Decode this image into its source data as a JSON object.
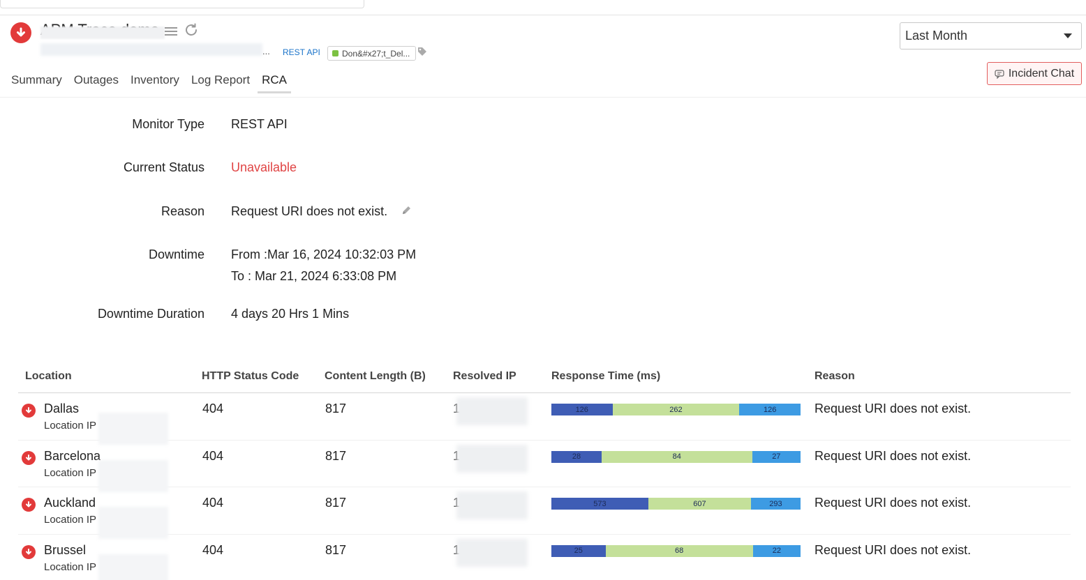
{
  "header": {
    "title": "APM Trace demo",
    "ellipsis": "...",
    "monitor_type_link": "REST API",
    "group_chip": "Don&#x27;t_Del...",
    "period": "Last Month",
    "incident_chat": "Incident Chat"
  },
  "tabs": [
    "Summary",
    "Outages",
    "Inventory",
    "Log Report",
    "RCA"
  ],
  "active_tab": "RCA",
  "details": {
    "monitor_type_label": "Monitor Type",
    "monitor_type_value": "REST API",
    "current_status_label": "Current Status",
    "current_status_value": "Unavailable",
    "reason_label": "Reason",
    "reason_value": "Request URI does not exist.",
    "downtime_label": "Downtime",
    "downtime_from": "From :Mar 16, 2024 10:32:03 PM",
    "downtime_to": "To : Mar 21, 2024 6:33:08 PM",
    "duration_label": "Downtime Duration",
    "duration_value": "4 days 20 Hrs 1 Mins"
  },
  "table": {
    "headers": {
      "location": "Location",
      "http_status": "HTTP Status Code",
      "content_length": "Content Length (B)",
      "resolved_ip": "Resolved IP",
      "response_time": "Response Time (ms)",
      "reason": "Reason"
    },
    "location_ip_label": "Location IP",
    "rows": [
      {
        "location": "Dallas",
        "status": "404",
        "length": "817",
        "ip_prefix": "1",
        "rt": [
          126,
          262,
          126
        ],
        "reason": "Request URI does not exist."
      },
      {
        "location": "Barcelona",
        "status": "404",
        "length": "817",
        "ip_prefix": "1",
        "rt": [
          28,
          84,
          27
        ],
        "reason": "Request URI does not exist."
      },
      {
        "location": "Auckland",
        "status": "404",
        "length": "817",
        "ip_prefix": "1",
        "rt": [
          573,
          607,
          293
        ],
        "reason": "Request URI does not exist."
      },
      {
        "location": "Brussel",
        "status": "404",
        "length": "817",
        "ip_prefix": "1",
        "rt": [
          25,
          68,
          22
        ],
        "reason": "Request URI does not exist."
      }
    ]
  },
  "colors": {
    "down_red": "#e23a3a",
    "status_unavailable": "#e04444",
    "rt_seg1": "#3f5db5",
    "rt_seg2": "#c4e09a",
    "rt_seg3": "#3d9be3",
    "link_blue": "#1a73c9"
  },
  "icons": [
    "down-arrow-icon",
    "hamburger-menu-icon",
    "refresh-icon",
    "tag-icon",
    "chevron-down-icon",
    "chat-icon",
    "pencil-icon"
  ]
}
